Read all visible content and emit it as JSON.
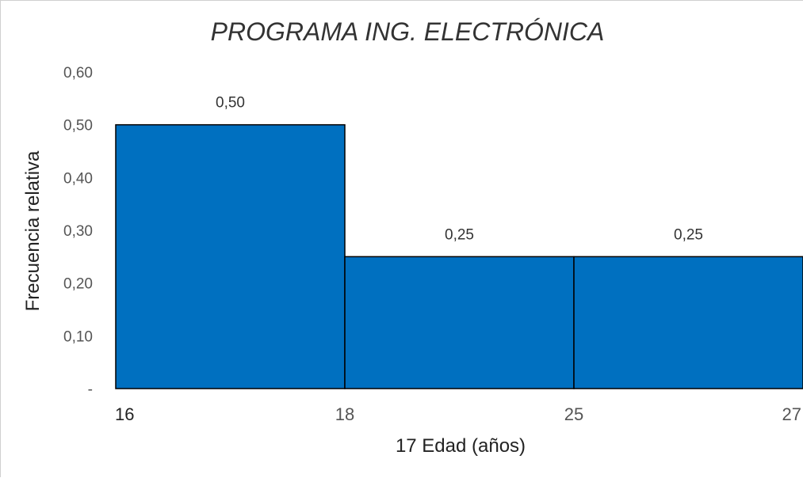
{
  "chart_data": {
    "type": "bar",
    "title": "PROGRAMA ING. ELECTRÓNICA",
    "xlabel": "17 Edad (años)",
    "ylabel": "Frecuencia relativa",
    "x_ticks": [
      "16",
      "18",
      "25",
      "27"
    ],
    "y_ticks": [
      "-",
      "0,10",
      "0,20",
      "0,30",
      "0,40",
      "0,50",
      "0,60"
    ],
    "ylim": [
      0,
      0.6
    ],
    "grid": false,
    "legend": "none",
    "bins": [
      {
        "from": "16",
        "to": "18",
        "value": 0.5,
        "label": "0,50"
      },
      {
        "from": "18",
        "to": "25",
        "value": 0.25,
        "label": "0,25"
      },
      {
        "from": "25",
        "to": "27",
        "value": 0.25,
        "label": "0,25"
      }
    ],
    "bar_color": "#0070C0",
    "edge_color": "#000000"
  }
}
